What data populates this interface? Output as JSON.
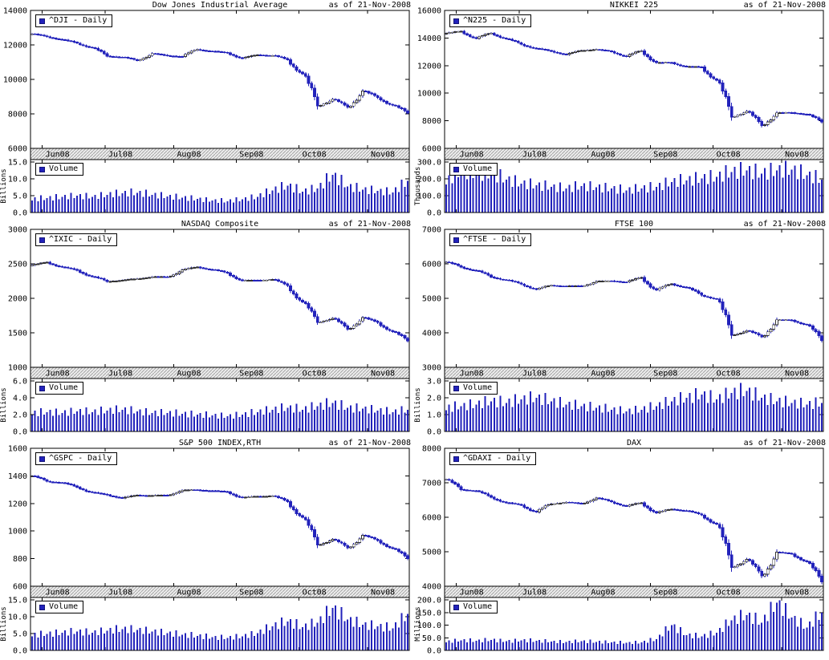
{
  "chart_data": [
    {
      "type": "candlestick_with_volume",
      "title": "Dow Jones Industrial Average",
      "as_of": "as of 21-Nov-2008",
      "legend": "^DJI - Daily",
      "volume_legend": "Volume",
      "x_labels": [
        "Jun08",
        "Jul08",
        "Aug08",
        "Sep08",
        "Oct08",
        "Nov08"
      ],
      "price_axis": {
        "min": 6000,
        "max": 14000,
        "ticks": [
          6000,
          8000,
          10000,
          12000,
          14000
        ]
      },
      "volume_axis": {
        "max": 15.75,
        "ticks": [
          0,
          5,
          10,
          15
        ],
        "unit": "Billions"
      },
      "weekly_close": [
        12640,
        12480,
        12300,
        12100,
        11840,
        11350,
        11290,
        11100,
        11496,
        11370,
        11326,
        11734,
        11628,
        11544,
        11221,
        11422,
        11388,
        11143,
        10325,
        8451,
        8852,
        8379,
        9325,
        8943,
        8497,
        8046
      ],
      "weekly_volume": [
        4.0,
        4.3,
        4.6,
        5.0,
        4.6,
        5.3,
        5.7,
        5.9,
        5.3,
        4.8,
        4.4,
        4.0,
        3.6,
        3.4,
        3.9,
        4.7,
        6.6,
        8.0,
        6.2,
        7.1,
        11.2,
        7.8,
        6.8,
        6.4,
        6.0,
        9.4
      ]
    },
    {
      "type": "candlestick_with_volume",
      "title": "NIKKEI 225",
      "as_of": "as of 21-Nov-2008",
      "legend": "^N225 - Daily",
      "volume_legend": "Volume",
      "x_labels": [
        "Jun08",
        "Jul08",
        "Aug08",
        "Sep08",
        "Oct08",
        "Nov08"
      ],
      "price_axis": {
        "min": 6000,
        "max": 16000,
        "ticks": [
          6000,
          8000,
          10000,
          12000,
          14000,
          16000
        ]
      },
      "volume_axis": {
        "max": 315,
        "ticks": [
          0,
          100,
          200,
          300
        ],
        "unit": "Thousands"
      },
      "weekly_close": [
        14338,
        14489,
        13973,
        14354,
        13942,
        13544,
        13237,
        13039,
        12803,
        13094,
        13168,
        13019,
        12666,
        13073,
        12212,
        12215,
        11921,
        11893,
        10938,
        8276,
        8694,
        7649,
        8577,
        8583,
        8463,
        7911
      ],
      "weekly_volume": [
        185,
        252,
        228,
        232,
        196,
        172,
        162,
        152,
        143,
        158,
        150,
        142,
        132,
        142,
        152,
        182,
        192,
        202,
        212,
        242,
        250,
        232,
        250,
        255,
        222,
        196
      ]
    },
    {
      "type": "candlestick_with_volume",
      "title": "NASDAQ Composite",
      "as_of": "as of 21-Nov-2008",
      "legend": "^IXIC - Daily",
      "volume_legend": "Volume",
      "x_labels": [
        "Jun08",
        "Jul08",
        "Aug08",
        "Sep08",
        "Oct08",
        "Nov08"
      ],
      "price_axis": {
        "min": 1000,
        "max": 3000,
        "ticks": [
          1000,
          1500,
          2000,
          2500,
          3000
        ]
      },
      "volume_axis": {
        "max": 6.3,
        "ticks": [
          0,
          2,
          4,
          6
        ],
        "unit": "Billions"
      },
      "weekly_close": [
        2480,
        2522,
        2454,
        2406,
        2315,
        2245,
        2260,
        2283,
        2311,
        2310,
        2414,
        2453,
        2415,
        2368,
        2256,
        2261,
        2274,
        2183,
        1947,
        1650,
        1711,
        1552,
        1721,
        1647,
        1517,
        1384
      ],
      "weekly_volume": [
        2.2,
        2.3,
        2.2,
        2.4,
        2.3,
        2.5,
        2.6,
        2.4,
        2.2,
        2.2,
        2.1,
        2.0,
        1.9,
        1.8,
        2.0,
        2.3,
        2.6,
        2.8,
        2.6,
        3.0,
        3.4,
        2.8,
        2.7,
        2.5,
        2.3,
        2.6
      ]
    },
    {
      "type": "candlestick_with_volume",
      "title": "FTSE 100",
      "as_of": "as of 21-Nov-2008",
      "legend": "^FTSE - Daily",
      "volume_legend": "Volume",
      "x_labels": [
        "Jun08",
        "Jul08",
        "Aug08",
        "Sep08",
        "Oct08",
        "Nov08"
      ],
      "price_axis": {
        "min": 3000,
        "max": 7000,
        "ticks": [
          3000,
          4000,
          5000,
          6000,
          7000
        ]
      },
      "volume_axis": {
        "max": 3.15,
        "ticks": [
          0,
          1,
          2,
          3
        ],
        "unit": "Billions"
      },
      "weekly_close": [
        6053,
        5906,
        5803,
        5620,
        5530,
        5413,
        5262,
        5376,
        5352,
        5355,
        5489,
        5506,
        5470,
        5602,
        5240,
        5417,
        5311,
        5088,
        4980,
        3932,
        4063,
        3883,
        4377,
        4365,
        4233,
        3781
      ],
      "weekly_volume": [
        1.4,
        1.5,
        1.6,
        1.8,
        1.7,
        1.9,
        2.0,
        1.8,
        1.6,
        1.5,
        1.4,
        1.3,
        1.2,
        1.3,
        1.5,
        1.8,
        2.0,
        2.2,
        1.9,
        2.3,
        2.4,
        2.0,
        1.8,
        1.7,
        1.6,
        1.7
      ]
    },
    {
      "type": "candlestick_with_volume",
      "title": "S&P 500 INDEX,RTH",
      "as_of": "as of 21-Nov-2008",
      "legend": "^GSPC - Daily",
      "volume_legend": "Volume",
      "x_labels": [
        "Jun08",
        "Jul08",
        "Aug08",
        "Sep08",
        "Oct08",
        "Nov08"
      ],
      "price_axis": {
        "min": 600,
        "max": 1600,
        "ticks": [
          600,
          800,
          1000,
          1200,
          1400,
          1600
        ]
      },
      "volume_axis": {
        "max": 15.75,
        "ticks": [
          0,
          5,
          10,
          15
        ],
        "unit": "Billions"
      },
      "weekly_close": [
        1400,
        1360,
        1350,
        1318,
        1280,
        1262,
        1239,
        1260,
        1257,
        1260,
        1296,
        1298,
        1292,
        1283,
        1242,
        1252,
        1255,
        1213,
        1099,
        899,
        940,
        877,
        969,
        931,
        873,
        800
      ],
      "weekly_volume": [
        4.6,
        4.9,
        5.2,
        5.6,
        5.2,
        5.9,
        6.3,
        6.1,
        5.6,
        5.1,
        4.7,
        4.3,
        3.9,
        3.7,
        4.2,
        5.1,
        7.2,
        8.6,
        6.9,
        8.2,
        12.6,
        9.2,
        7.6,
        7.1,
        6.6,
        10.8
      ]
    },
    {
      "type": "candlestick_with_volume",
      "title": "DAX",
      "as_of": "as of 21-Nov-2008",
      "legend": "^GDAXI - Daily",
      "volume_legend": "Volume",
      "x_labels": [
        "Jun08",
        "Jul08",
        "Aug08",
        "Sep08",
        "Oct08",
        "Nov08"
      ],
      "price_axis": {
        "min": 4000,
        "max": 8000,
        "ticks": [
          4000,
          5000,
          6000,
          7000,
          8000
        ]
      },
      "volume_axis": {
        "max": 210,
        "ticks": [
          0,
          50,
          100,
          150,
          200
        ],
        "unit": "Millions"
      },
      "weekly_close": [
        7097,
        6804,
        6765,
        6578,
        6422,
        6353,
        6153,
        6387,
        6437,
        6396,
        6561,
        6446,
        6322,
        6422,
        6127,
        6235,
        6189,
        6063,
        5797,
        4544,
        4781,
        4295,
        4987,
        4938,
        4710,
        4127
      ],
      "weekly_volume": [
        35,
        40,
        38,
        42,
        36,
        40,
        38,
        35,
        33,
        36,
        34,
        32,
        30,
        32,
        45,
        100,
        60,
        55,
        70,
        120,
        140,
        110,
        190,
        130,
        90,
        150
      ]
    }
  ],
  "colors": {
    "candle_blue": "#2222bb",
    "up_candle_fill": "#ffffff",
    "up_candle_outline": "#333333",
    "band_bg": "#ececec",
    "band_hatch": "#9a9a9a"
  }
}
